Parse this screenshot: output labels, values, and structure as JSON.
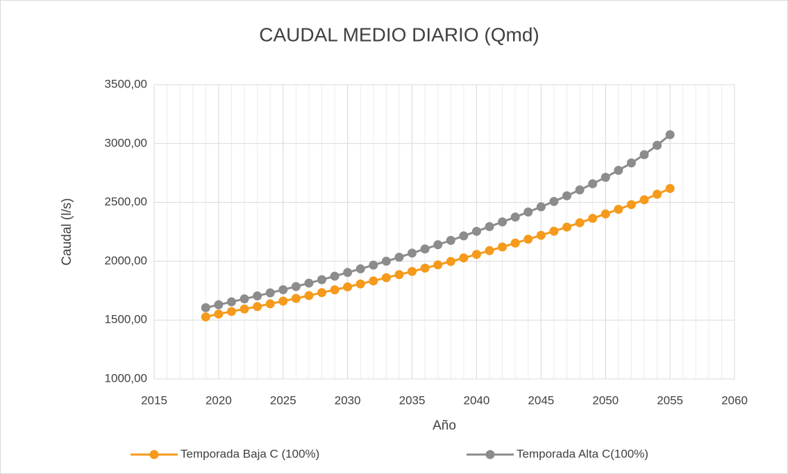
{
  "chart_data": {
    "type": "line",
    "title": "CAUDAL MEDIO DIARIO (Qmd)",
    "x_label": "Año",
    "y_label": "Caudal (l/s)",
    "x": [
      2019,
      2020,
      2021,
      2022,
      2023,
      2024,
      2025,
      2026,
      2027,
      2028,
      2029,
      2030,
      2031,
      2032,
      2033,
      2034,
      2035,
      2036,
      2037,
      2038,
      2039,
      2040,
      2041,
      2042,
      2043,
      2044,
      2045,
      2046,
      2047,
      2048,
      2049,
      2050,
      2051,
      2052,
      2053,
      2054,
      2055
    ],
    "series": [
      {
        "name": "Temporada Baja C (100%)",
        "color": "#f59a1b",
        "values": [
          1527,
          1551,
          1573,
          1594,
          1615,
          1638,
          1661,
          1684,
          1708,
          1733,
          1757,
          1782,
          1807,
          1833,
          1860,
          1886,
          1913,
          1941,
          1969,
          1998,
          2028,
          2058,
          2090,
          2121,
          2154,
          2187,
          2220,
          2255,
          2290,
          2327,
          2364,
          2402,
          2441,
          2481,
          2522,
          2569,
          2618
        ]
      },
      {
        "name": "Temporada Alta C(100%)",
        "color": "#8c8c8c",
        "values": [
          1605,
          1630,
          1655,
          1680,
          1705,
          1731,
          1758,
          1785,
          1814,
          1843,
          1873,
          1904,
          1935,
          1967,
          2000,
          2034,
          2069,
          2104,
          2140,
          2177,
          2215,
          2254,
          2294,
          2334,
          2375,
          2418,
          2462,
          2508,
          2556,
          2606,
          2658,
          2713,
          2772,
          2835,
          2905,
          2985,
          3075
        ]
      }
    ],
    "xlim": [
      2015,
      2060
    ],
    "xticks": [
      2015,
      2020,
      2025,
      2030,
      2035,
      2040,
      2045,
      2050,
      2055,
      2060
    ],
    "x_minor_step": 1,
    "ylim": [
      1000,
      3500
    ],
    "yticks": [
      {
        "value": 1000,
        "label": "1000,00"
      },
      {
        "value": 1500,
        "label": "1500,00"
      },
      {
        "value": 2000,
        "label": "2000,00"
      },
      {
        "value": 2500,
        "label": "2500,00"
      },
      {
        "value": 3000,
        "label": "3000,00"
      },
      {
        "value": 3500,
        "label": "3500,00"
      }
    ],
    "grid": true,
    "legend": "bottom"
  }
}
